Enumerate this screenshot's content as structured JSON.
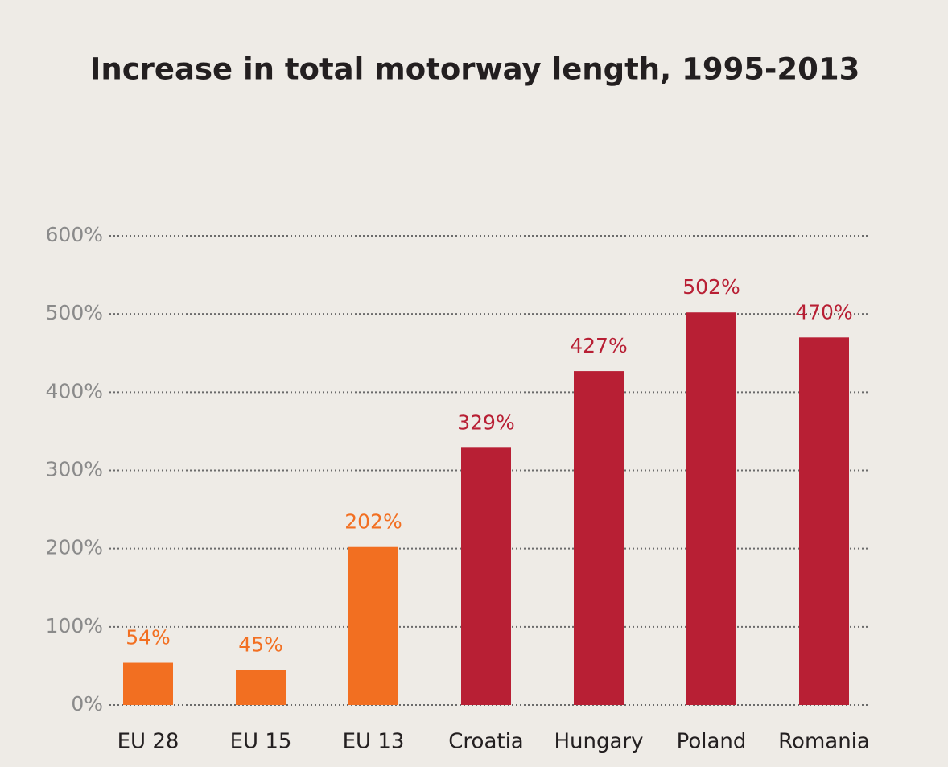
{
  "chart_data": {
    "type": "bar",
    "title": "Increase in total motorway length, 1995-2013",
    "categories": [
      "EU 28",
      "EU 15",
      "EU 13",
      "Croatia",
      "Hungary",
      "Poland",
      "Romania"
    ],
    "values": [
      54,
      45,
      202,
      329,
      427,
      502,
      470
    ],
    "value_labels": [
      "54%",
      "45%",
      "202%",
      "329%",
      "427%",
      "502%",
      "470%"
    ],
    "colors": [
      "#f26f21",
      "#f26f21",
      "#f26f21",
      "#b81f34",
      "#b81f34",
      "#b81f34",
      "#b81f34"
    ],
    "ylim": [
      0,
      600
    ],
    "yticks": [
      {
        "value": 0,
        "label": "0%"
      },
      {
        "value": 100,
        "label": "100%"
      },
      {
        "value": 200,
        "label": "200%"
      },
      {
        "value": 300,
        "label": "300%"
      },
      {
        "value": 400,
        "label": "400%"
      },
      {
        "value": 500,
        "label": "500%"
      },
      {
        "value": 600,
        "label": "600%"
      }
    ],
    "grid": true
  }
}
